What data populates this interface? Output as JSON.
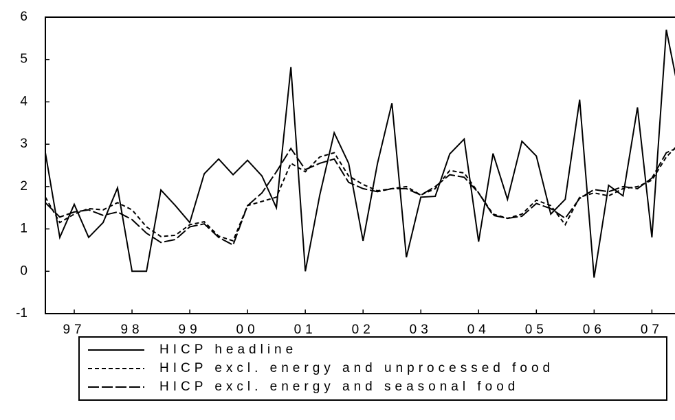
{
  "chart_data": {
    "type": "line",
    "x": [
      1997,
      1997.25,
      1997.5,
      1997.75,
      1998,
      1998.25,
      1998.5,
      1998.75,
      1999,
      1999.25,
      1999.5,
      1999.75,
      2000,
      2000.25,
      2000.5,
      2000.75,
      2001,
      2001.25,
      2001.5,
      2001.75,
      2002,
      2002.25,
      2002.5,
      2002.75,
      2003,
      2003.25,
      2003.5,
      2003.75,
      2004,
      2004.25,
      2004.5,
      2004.75,
      2005,
      2005.25,
      2005.5,
      2005.75,
      2006,
      2006.25,
      2006.5,
      2006.75,
      2007,
      2007.25,
      2007.5,
      2007.75,
      2008
    ],
    "xlim": [
      1997,
      2007.9
    ],
    "xticks": [
      {
        "value": 1997.5,
        "label": "97"
      },
      {
        "value": 1998.5,
        "label": "98"
      },
      {
        "value": 1999.5,
        "label": "99"
      },
      {
        "value": 2000.5,
        "label": "00"
      },
      {
        "value": 2001.5,
        "label": "01"
      },
      {
        "value": 2002.5,
        "label": "02"
      },
      {
        "value": 2003.5,
        "label": "03"
      },
      {
        "value": 2004.5,
        "label": "04"
      },
      {
        "value": 2005.5,
        "label": "05"
      },
      {
        "value": 2006.5,
        "label": "06"
      },
      {
        "value": 2007.5,
        "label": "07"
      }
    ],
    "ylim": [
      -1,
      6
    ],
    "yticks": [
      -1,
      0,
      1,
      2,
      3,
      4,
      5,
      6
    ],
    "series": [
      {
        "name": "HICP headline",
        "color": "#000000",
        "dash": "none",
        "values": [
          2.8,
          0.8,
          1.58,
          0.8,
          1.15,
          1.97,
          0,
          0,
          1.92,
          1.55,
          1.15,
          2.3,
          2.65,
          2.28,
          2.62,
          2.25,
          1.5,
          4.82,
          0,
          1.8,
          3.27,
          2.55,
          0.72,
          2.55,
          3.97,
          0.33,
          1.75,
          1.77,
          2.77,
          3.12,
          0.7,
          2.78,
          1.7,
          3.07,
          2.72,
          1.35,
          1.7,
          4.05,
          -0.15,
          2.03,
          1.78,
          3.87,
          0.8,
          5.7,
          4.0
        ]
      },
      {
        "name": "HICP excl. energy and unprocessed food",
        "color": "#000000",
        "dash": "6 4",
        "values": [
          1.75,
          1.15,
          1.35,
          1.48,
          1.45,
          1.62,
          1.45,
          1.05,
          0.82,
          0.85,
          1.1,
          1.17,
          0.83,
          0.72,
          1.55,
          1.65,
          1.75,
          2.55,
          2.35,
          2.7,
          2.8,
          2.25,
          2.05,
          1.9,
          1.95,
          2.0,
          1.8,
          1.95,
          2.38,
          2.32,
          1.85,
          1.35,
          1.25,
          1.35,
          1.68,
          1.55,
          1.1,
          1.75,
          1.85,
          1.78,
          1.95,
          2.0,
          2.15,
          2.7,
          3.05
        ]
      },
      {
        "name": "HICP excl. energy and seasonal food",
        "color": "#000000",
        "dash": "16 4",
        "values": [
          1.62,
          1.28,
          1.4,
          1.45,
          1.32,
          1.4,
          1.22,
          0.9,
          0.68,
          0.75,
          1.05,
          1.12,
          0.8,
          0.62,
          1.55,
          1.85,
          2.35,
          2.9,
          2.4,
          2.55,
          2.65,
          2.1,
          1.95,
          1.88,
          1.95,
          1.95,
          1.8,
          2.0,
          2.28,
          2.22,
          1.85,
          1.32,
          1.25,
          1.3,
          1.6,
          1.48,
          1.25,
          1.72,
          1.93,
          1.88,
          2.0,
          1.95,
          2.2,
          2.8,
          2.95
        ]
      }
    ]
  }
}
